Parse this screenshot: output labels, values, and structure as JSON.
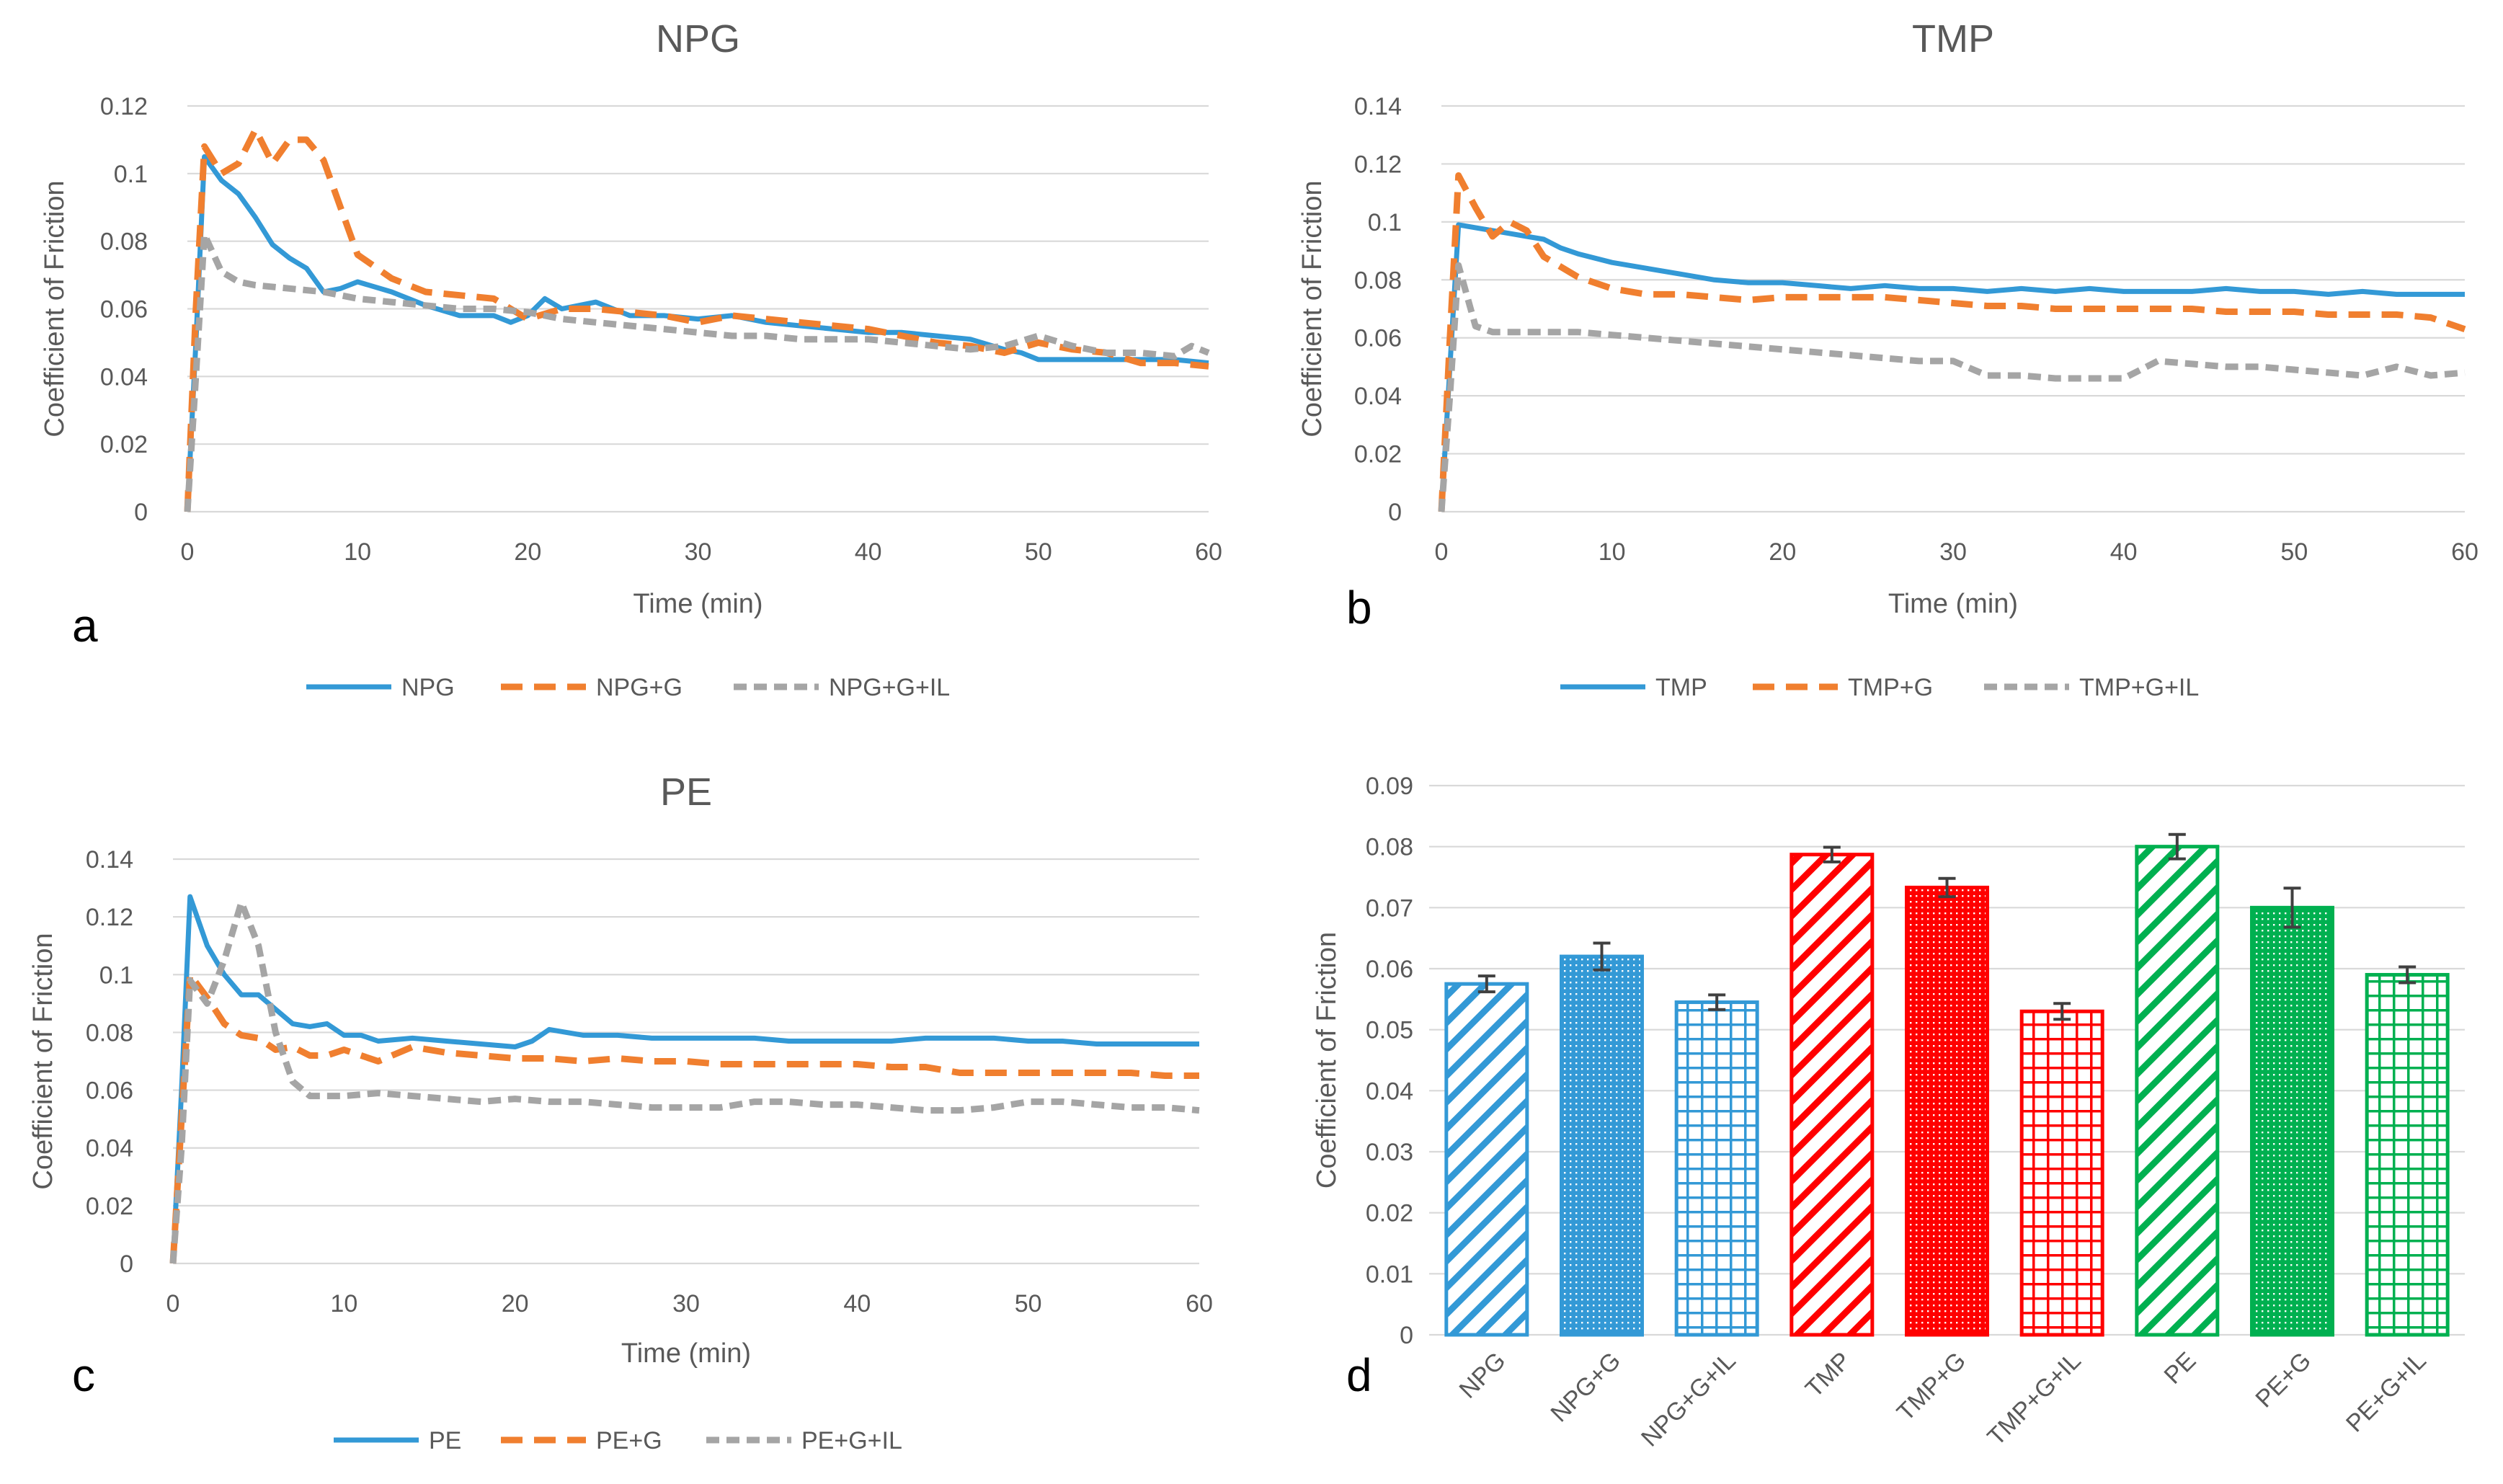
{
  "chart_data": [
    {
      "panel": "a",
      "type": "line",
      "title": "NPG",
      "xlabel": "Time (min)",
      "ylabel": "Coefficient of Friction",
      "xlim": [
        0,
        60
      ],
      "ylim": [
        0,
        0.12
      ],
      "xticks": [
        "0",
        "10",
        "20",
        "30",
        "40",
        "50",
        "60"
      ],
      "yticks": [
        "0",
        "0.02",
        "0.04",
        "0.06",
        "0.08",
        "0.1",
        "0.12"
      ],
      "legend_position": "bottom",
      "series": [
        {
          "name": "NPG",
          "color": "#3399d6",
          "dash": "solid",
          "x": [
            0,
            0.5,
            1,
            2,
            3,
            4,
            5,
            6,
            7,
            8,
            9,
            10,
            12,
            14,
            16,
            18,
            19,
            20,
            21,
            22,
            24,
            26,
            28,
            30,
            32,
            34,
            36,
            38,
            40,
            42,
            44,
            46,
            48,
            49,
            50,
            52,
            54,
            56,
            58,
            60
          ],
          "y": [
            0,
            0.05,
            0.105,
            0.098,
            0.094,
            0.087,
            0.079,
            0.075,
            0.072,
            0.065,
            0.066,
            0.068,
            0.065,
            0.061,
            0.058,
            0.058,
            0.056,
            0.058,
            0.063,
            0.06,
            0.062,
            0.058,
            0.058,
            0.057,
            0.058,
            0.056,
            0.055,
            0.054,
            0.053,
            0.053,
            0.052,
            0.051,
            0.048,
            0.047,
            0.045,
            0.045,
            0.045,
            0.045,
            0.045,
            0.044
          ]
        },
        {
          "name": "NPG+G",
          "color": "#f07f2f",
          "dash": "long",
          "x": [
            0,
            0.5,
            1,
            2,
            3,
            4,
            5,
            6,
            7,
            8,
            9,
            10,
            12,
            14,
            16,
            18,
            20,
            22,
            24,
            26,
            28,
            30,
            32,
            34,
            36,
            38,
            40,
            42,
            44,
            46,
            48,
            50,
            52,
            54,
            56,
            58,
            60
          ],
          "y": [
            0,
            0.06,
            0.108,
            0.1,
            0.103,
            0.113,
            0.103,
            0.11,
            0.11,
            0.104,
            0.09,
            0.076,
            0.069,
            0.065,
            0.064,
            0.063,
            0.057,
            0.06,
            0.06,
            0.059,
            0.058,
            0.056,
            0.058,
            0.057,
            0.056,
            0.055,
            0.054,
            0.052,
            0.05,
            0.049,
            0.047,
            0.05,
            0.048,
            0.047,
            0.044,
            0.044,
            0.043
          ]
        },
        {
          "name": "NPG+G+IL",
          "color": "#a5a5a5",
          "dash": "short",
          "x": [
            0,
            0.5,
            1,
            2,
            3,
            4,
            6,
            8,
            10,
            12,
            14,
            16,
            18,
            20,
            22,
            24,
            26,
            28,
            30,
            32,
            34,
            36,
            38,
            40,
            42,
            44,
            46,
            48,
            50,
            52,
            54,
            56,
            58,
            59,
            60
          ],
          "y": [
            0,
            0.04,
            0.082,
            0.071,
            0.068,
            0.067,
            0.066,
            0.065,
            0.063,
            0.062,
            0.061,
            0.06,
            0.06,
            0.059,
            0.057,
            0.056,
            0.055,
            0.054,
            0.053,
            0.052,
            0.052,
            0.051,
            0.051,
            0.051,
            0.05,
            0.049,
            0.048,
            0.049,
            0.052,
            0.049,
            0.047,
            0.047,
            0.046,
            0.049,
            0.047
          ]
        }
      ]
    },
    {
      "panel": "b",
      "type": "line",
      "title": "TMP",
      "xlabel": "Time (min)",
      "ylabel": "Coefficient of Friction",
      "xlim": [
        0,
        60
      ],
      "ylim": [
        0,
        0.14
      ],
      "xticks": [
        "0",
        "10",
        "20",
        "30",
        "40",
        "50",
        "60"
      ],
      "yticks": [
        "0",
        "0.02",
        "0.04",
        "0.06",
        "0.08",
        "0.1",
        "0.12",
        "0.14"
      ],
      "legend_position": "bottom",
      "series": [
        {
          "name": "TMP",
          "color": "#3399d6",
          "dash": "solid",
          "x": [
            0,
            0.5,
            1,
            2,
            3,
            4,
            5,
            6,
            7,
            8,
            10,
            12,
            14,
            16,
            18,
            20,
            22,
            24,
            26,
            28,
            30,
            32,
            34,
            36,
            38,
            40,
            42,
            44,
            46,
            48,
            50,
            52,
            54,
            56,
            58,
            60
          ],
          "y": [
            0,
            0.05,
            0.099,
            0.098,
            0.097,
            0.096,
            0.095,
            0.094,
            0.091,
            0.089,
            0.086,
            0.084,
            0.082,
            0.08,
            0.079,
            0.079,
            0.078,
            0.077,
            0.078,
            0.077,
            0.077,
            0.076,
            0.077,
            0.076,
            0.077,
            0.076,
            0.076,
            0.076,
            0.077,
            0.076,
            0.076,
            0.075,
            0.076,
            0.075,
            0.075,
            0.075
          ]
        },
        {
          "name": "TMP+G",
          "color": "#f07f2f",
          "dash": "long",
          "x": [
            0,
            0.5,
            1,
            2,
            3,
            4,
            5,
            6,
            8,
            10,
            12,
            14,
            16,
            18,
            20,
            22,
            24,
            26,
            28,
            30,
            32,
            34,
            36,
            38,
            40,
            42,
            44,
            46,
            48,
            50,
            52,
            54,
            56,
            58,
            60
          ],
          "y": [
            0,
            0.06,
            0.116,
            0.105,
            0.095,
            0.1,
            0.097,
            0.088,
            0.081,
            0.077,
            0.075,
            0.075,
            0.074,
            0.073,
            0.074,
            0.074,
            0.074,
            0.074,
            0.073,
            0.072,
            0.071,
            0.071,
            0.07,
            0.07,
            0.07,
            0.07,
            0.07,
            0.069,
            0.069,
            0.069,
            0.068,
            0.068,
            0.068,
            0.067,
            0.063
          ]
        },
        {
          "name": "TMP+G+IL",
          "color": "#a5a5a5",
          "dash": "short",
          "x": [
            0,
            0.5,
            1,
            2,
            3,
            4,
            5,
            6,
            8,
            10,
            12,
            14,
            16,
            18,
            20,
            22,
            24,
            26,
            28,
            30,
            32,
            34,
            36,
            38,
            40,
            42,
            44,
            46,
            48,
            50,
            52,
            54,
            56,
            58,
            60
          ],
          "y": [
            0,
            0.04,
            0.085,
            0.064,
            0.062,
            0.062,
            0.062,
            0.062,
            0.062,
            0.061,
            0.06,
            0.059,
            0.058,
            0.057,
            0.056,
            0.055,
            0.054,
            0.053,
            0.052,
            0.052,
            0.047,
            0.047,
            0.046,
            0.046,
            0.046,
            0.052,
            0.051,
            0.05,
            0.05,
            0.049,
            0.048,
            0.047,
            0.05,
            0.047,
            0.048
          ]
        }
      ]
    },
    {
      "panel": "c",
      "type": "line",
      "title": "PE",
      "xlabel": "Time (min)",
      "ylabel": "Coefficient of Friction",
      "xlim": [
        0,
        60
      ],
      "ylim": [
        0,
        0.14
      ],
      "xticks": [
        "0",
        "10",
        "20",
        "30",
        "40",
        "50",
        "60"
      ],
      "yticks": [
        "0",
        "0.02",
        "0.04",
        "0.06",
        "0.08",
        "0.1",
        "0.12",
        "0.14"
      ],
      "legend_position": "bottom",
      "series": [
        {
          "name": "PE",
          "color": "#3399d6",
          "dash": "solid",
          "x": [
            0,
            0.5,
            1,
            2,
            3,
            4,
            5,
            6,
            7,
            8,
            9,
            10,
            11,
            12,
            14,
            16,
            18,
            20,
            21,
            22,
            24,
            26,
            28,
            30,
            32,
            34,
            36,
            38,
            40,
            42,
            44,
            46,
            48,
            50,
            52,
            54,
            56,
            58,
            60
          ],
          "y": [
            0,
            0.06,
            0.127,
            0.11,
            0.1,
            0.093,
            0.093,
            0.088,
            0.083,
            0.082,
            0.083,
            0.079,
            0.079,
            0.077,
            0.078,
            0.077,
            0.076,
            0.075,
            0.077,
            0.081,
            0.079,
            0.079,
            0.078,
            0.078,
            0.078,
            0.078,
            0.077,
            0.077,
            0.077,
            0.077,
            0.078,
            0.078,
            0.078,
            0.077,
            0.077,
            0.076,
            0.076,
            0.076,
            0.076
          ]
        },
        {
          "name": "PE+G",
          "color": "#f07f2f",
          "dash": "long",
          "x": [
            0,
            0.5,
            1,
            2,
            3,
            4,
            5,
            6,
            7,
            8,
            9,
            10,
            12,
            14,
            16,
            18,
            20,
            22,
            24,
            26,
            28,
            30,
            32,
            34,
            36,
            38,
            40,
            42,
            44,
            46,
            48,
            50,
            52,
            54,
            56,
            58,
            60
          ],
          "y": [
            0,
            0.05,
            0.1,
            0.092,
            0.083,
            0.079,
            0.078,
            0.074,
            0.075,
            0.072,
            0.072,
            0.074,
            0.07,
            0.075,
            0.073,
            0.072,
            0.071,
            0.071,
            0.07,
            0.071,
            0.07,
            0.07,
            0.069,
            0.069,
            0.069,
            0.069,
            0.069,
            0.068,
            0.068,
            0.066,
            0.066,
            0.066,
            0.066,
            0.066,
            0.066,
            0.065,
            0.065
          ]
        },
        {
          "name": "PE+G+IL",
          "color": "#a5a5a5",
          "dash": "short",
          "x": [
            0,
            0.5,
            1,
            2,
            3,
            4,
            5,
            6,
            7,
            8,
            10,
            12,
            14,
            16,
            18,
            20,
            22,
            24,
            26,
            28,
            30,
            32,
            34,
            36,
            38,
            40,
            42,
            44,
            46,
            48,
            50,
            52,
            54,
            56,
            58,
            60
          ],
          "y": [
            0,
            0.04,
            0.098,
            0.09,
            0.105,
            0.125,
            0.11,
            0.08,
            0.063,
            0.058,
            0.058,
            0.059,
            0.058,
            0.057,
            0.056,
            0.057,
            0.056,
            0.056,
            0.055,
            0.054,
            0.054,
            0.054,
            0.056,
            0.056,
            0.055,
            0.055,
            0.054,
            0.053,
            0.053,
            0.054,
            0.056,
            0.056,
            0.055,
            0.054,
            0.054,
            0.053
          ]
        }
      ]
    },
    {
      "panel": "d",
      "type": "bar",
      "title": "",
      "xlabel": "",
      "ylabel": "Coefficient of Friction",
      "ylim": [
        0,
        0.09
      ],
      "yticks": [
        "0",
        "0.01",
        "0.02",
        "0.03",
        "0.04",
        "0.05",
        "0.06",
        "0.07",
        "0.08",
        "0.09"
      ],
      "categories": [
        "NPG",
        "NPG+G",
        "NPG+G+IL",
        "TMP",
        "TMP+G",
        "TMP+G+IL",
        "PE",
        "PE+G",
        "PE+G+IL"
      ],
      "values": [
        0.0575,
        0.062,
        0.0545,
        0.0787,
        0.0733,
        0.053,
        0.08,
        0.07,
        0.059
      ],
      "errors": [
        0.0013,
        0.0022,
        0.0012,
        0.0012,
        0.0015,
        0.0013,
        0.002,
        0.0032,
        0.0013
      ],
      "colors": [
        "#3399d6",
        "#3399d6",
        "#3399d6",
        "#ff0000",
        "#ff0000",
        "#ff0000",
        "#00b050",
        "#00b050",
        "#00b050"
      ],
      "patterns": [
        "diagonal",
        "dots",
        "grid",
        "diagonal",
        "dots",
        "grid",
        "diagonal",
        "dots",
        "grid"
      ]
    }
  ]
}
